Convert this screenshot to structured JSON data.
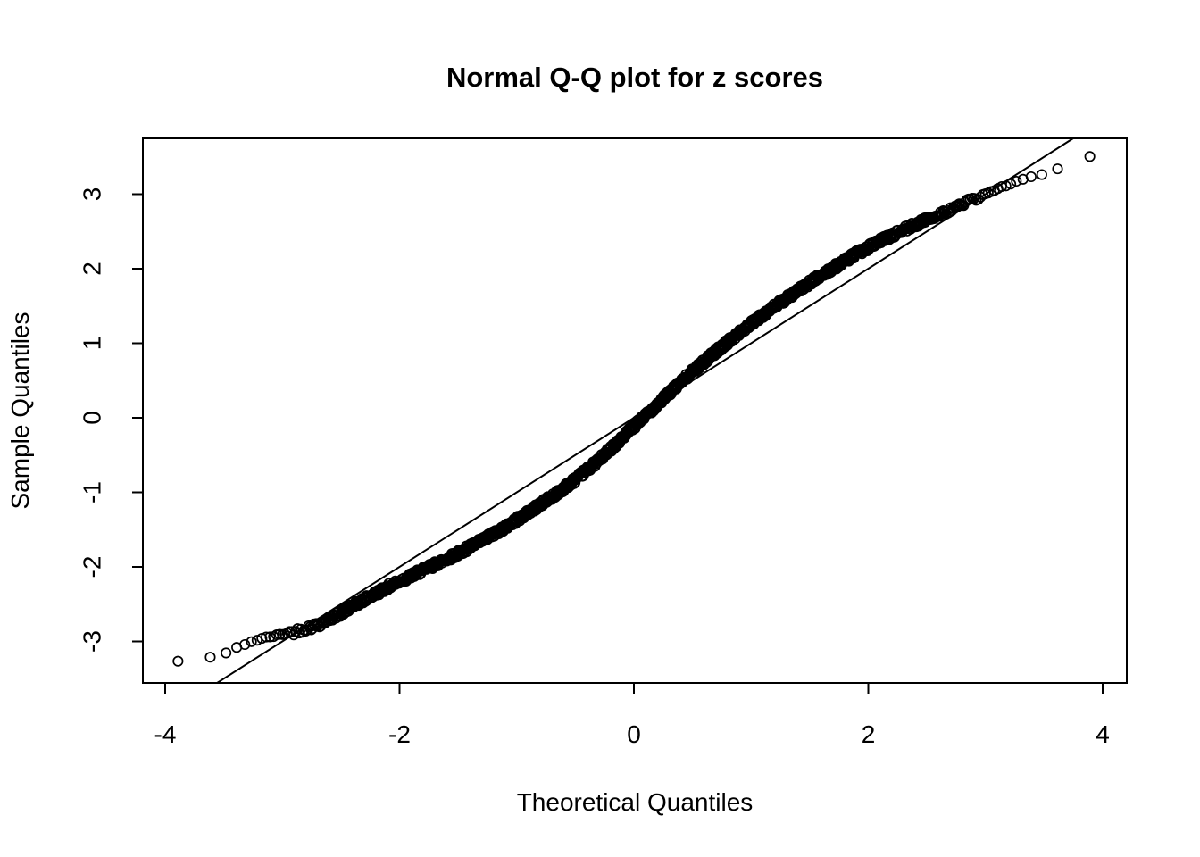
{
  "chart_data": {
    "type": "scatter",
    "title": "Normal Q-Q plot for z scores",
    "xlabel": "Theoretical Quantiles",
    "ylabel": "Sample Quantiles",
    "xlim": [
      -4.19,
      4.21
    ],
    "ylim": [
      -3.56,
      3.75
    ],
    "x_ticks": [
      -4,
      -2,
      0,
      2,
      4
    ],
    "y_ticks": [
      -3,
      -2,
      -1,
      0,
      1,
      2,
      3
    ],
    "grid": false,
    "legend": "none",
    "n_points": 10000,
    "reference_line": {
      "slope": 1,
      "intercept": 0
    },
    "marker": {
      "shape": "open-circle",
      "radius_px": 5.2,
      "stroke_px": 1.7,
      "color": "#000000"
    },
    "colors": {
      "foreground": "#000000",
      "background": "#ffffff"
    },
    "curve_points": [
      [
        -3.9,
        -3.27
      ],
      [
        -3.65,
        -3.22
      ],
      [
        -3.5,
        -3.18
      ],
      [
        -3.35,
        -3.05
      ],
      [
        -3.2,
        -2.97
      ],
      [
        -3.05,
        -2.92
      ],
      [
        -2.9,
        -2.87
      ],
      [
        -2.7,
        -2.78
      ],
      [
        -2.5,
        -2.62
      ],
      [
        -2.3,
        -2.44
      ],
      [
        -2.1,
        -2.27
      ],
      [
        -1.9,
        -2.12
      ],
      [
        -1.7,
        -1.97
      ],
      [
        -1.5,
        -1.82
      ],
      [
        -1.3,
        -1.65
      ],
      [
        -1.1,
        -1.47
      ],
      [
        -0.9,
        -1.27
      ],
      [
        -0.7,
        -1.06
      ],
      [
        -0.5,
        -0.83
      ],
      [
        -0.3,
        -0.57
      ],
      [
        -0.1,
        -0.27
      ],
      [
        0.1,
        0.03
      ],
      [
        0.3,
        0.33
      ],
      [
        0.5,
        0.62
      ],
      [
        0.7,
        0.89
      ],
      [
        0.9,
        1.14
      ],
      [
        1.1,
        1.38
      ],
      [
        1.3,
        1.6
      ],
      [
        1.5,
        1.81
      ],
      [
        1.7,
        2.01
      ],
      [
        1.9,
        2.2
      ],
      [
        2.1,
        2.37
      ],
      [
        2.3,
        2.52
      ],
      [
        2.5,
        2.66
      ],
      [
        2.7,
        2.79
      ],
      [
        2.9,
        2.93
      ],
      [
        3.0,
        3.0
      ],
      [
        3.1,
        3.07
      ],
      [
        3.2,
        3.13
      ],
      [
        3.3,
        3.18
      ],
      [
        3.45,
        3.26
      ],
      [
        3.6,
        3.33
      ],
      [
        3.75,
        3.42
      ],
      [
        3.9,
        3.5
      ]
    ]
  }
}
